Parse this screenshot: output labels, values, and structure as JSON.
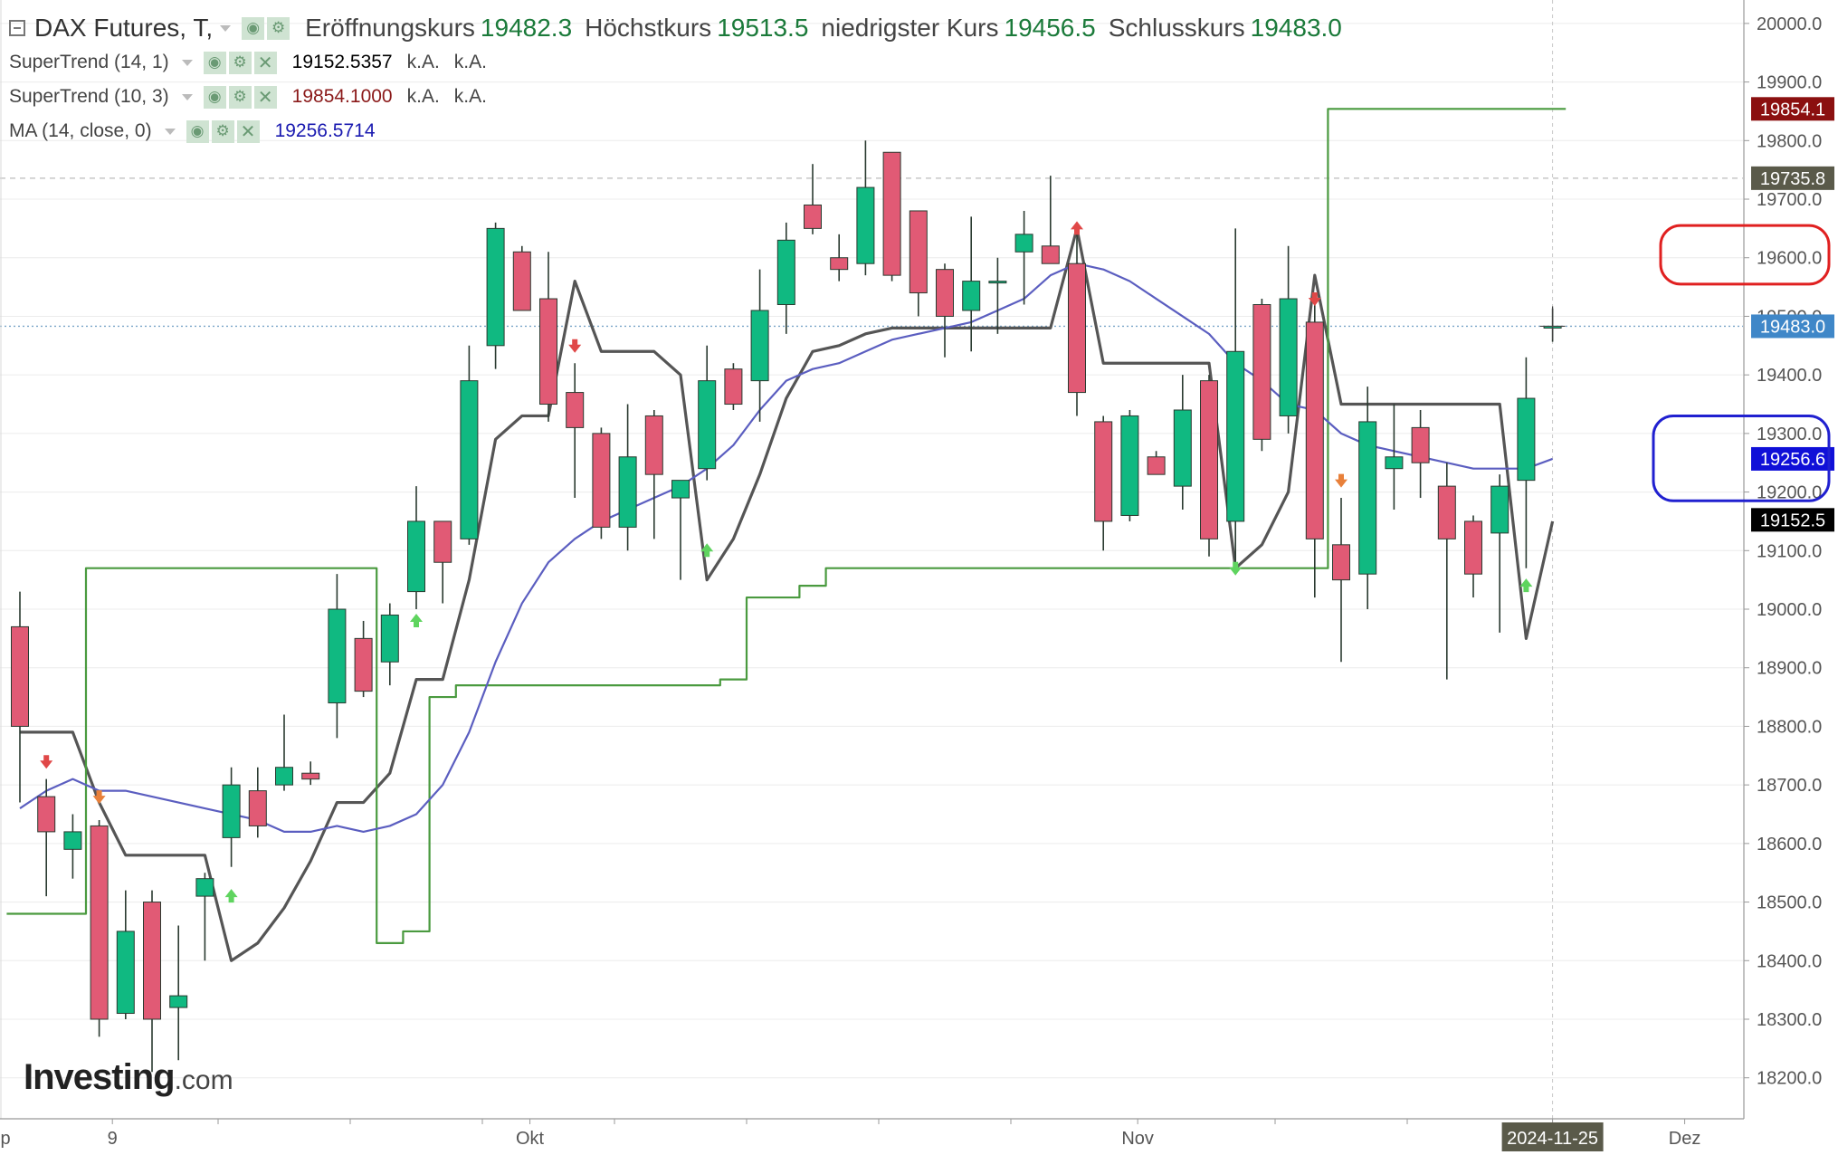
{
  "header": {
    "symbol": "DAX Futures, T,",
    "open_label": "Eröffnungskurs",
    "open_value": "19482.3",
    "high_label": "Höchstkurs",
    "high_value": "19513.5",
    "low_label": "niedrigster Kurs",
    "low_value": "19456.5",
    "close_label": "Schlusskurs",
    "close_value": "19483.0"
  },
  "indicators": [
    {
      "label": "SuperTrend (14, 1)",
      "value": "19152.5357",
      "na1": "k.A.",
      "na2": "k.A.",
      "color": "#000000"
    },
    {
      "label": "SuperTrend (10, 3)",
      "value": "19854.1000",
      "na1": "k.A.",
      "na2": "k.A.",
      "color": "#8b1a1a"
    },
    {
      "label": "MA (14, close, 0)",
      "value": "19256.5714",
      "na1": "",
      "na2": "",
      "color": "#1a1ab0"
    }
  ],
  "logo": {
    "brand": "Investing",
    "suffix": ".com"
  },
  "colors": {
    "up": "#10b981",
    "down": "#e15a75",
    "grid": "#ececec"
  },
  "chart_data": {
    "type": "candlestick",
    "title": "DAX Futures, T,",
    "y_axis": {
      "min": 18130,
      "max": 20040,
      "ticks": [
        18200,
        18300,
        18400,
        18500,
        18600,
        18700,
        18800,
        18900,
        19000,
        19100,
        19200,
        19300,
        19400,
        19500,
        19600,
        19700,
        19800,
        19900,
        20000
      ],
      "tick_labels": [
        "18200.0",
        "18300.0",
        "18400.0",
        "18500.0",
        "18600.0",
        "18700.0",
        "18800.0",
        "18900.0",
        "19000.0",
        "19100.0",
        "19200.0",
        "19300.0",
        "19400.0",
        "19500.0",
        "19600.0",
        "19700.0",
        "19800.0",
        "19900.0",
        "20000.0"
      ]
    },
    "x_axis": {
      "labels": [
        {
          "text": "p",
          "index": -1.8
        },
        {
          "text": "9",
          "index": 3.5
        },
        {
          "text": "Okt",
          "index": 19.3
        },
        {
          "text": "Nov",
          "index": 42.3
        },
        {
          "text": "2024-11-25",
          "index": 58,
          "highlight": true
        },
        {
          "text": "Dez",
          "index": 63
        }
      ],
      "minor_ticks": [
        7.5,
        12.5,
        17.5,
        22.5,
        27.5,
        32.5,
        37.5,
        47.5,
        52.5
      ]
    },
    "candles": [
      {
        "o": 18970,
        "h": 19030,
        "l": 18670,
        "c": 18800
      },
      {
        "o": 18680,
        "h": 18710,
        "l": 18510,
        "c": 18620
      },
      {
        "o": 18590,
        "h": 18650,
        "l": 18540,
        "c": 18620
      },
      {
        "o": 18630,
        "h": 18640,
        "l": 18270,
        "c": 18300
      },
      {
        "o": 18310,
        "h": 18520,
        "l": 18300,
        "c": 18450
      },
      {
        "o": 18500,
        "h": 18520,
        "l": 18210,
        "c": 18300
      },
      {
        "o": 18320,
        "h": 18460,
        "l": 18230,
        "c": 18340
      },
      {
        "o": 18510,
        "h": 18550,
        "l": 18400,
        "c": 18540
      },
      {
        "o": 18610,
        "h": 18730,
        "l": 18560,
        "c": 18700
      },
      {
        "o": 18690,
        "h": 18730,
        "l": 18610,
        "c": 18630
      },
      {
        "o": 18700,
        "h": 18820,
        "l": 18690,
        "c": 18730
      },
      {
        "o": 18720,
        "h": 18740,
        "l": 18700,
        "c": 18710
      },
      {
        "o": 18840,
        "h": 19060,
        "l": 18780,
        "c": 19000
      },
      {
        "o": 18950,
        "h": 18980,
        "l": 18850,
        "c": 18860
      },
      {
        "o": 18910,
        "h": 19010,
        "l": 18870,
        "c": 18990
      },
      {
        "o": 19030,
        "h": 19210,
        "l": 19000,
        "c": 19150
      },
      {
        "o": 19150,
        "h": 19150,
        "l": 19010,
        "c": 19080
      },
      {
        "o": 19120,
        "h": 19450,
        "l": 19110,
        "c": 19390
      },
      {
        "o": 19450,
        "h": 19660,
        "l": 19410,
        "c": 19650
      },
      {
        "o": 19610,
        "h": 19620,
        "l": 19510,
        "c": 19510
      },
      {
        "o": 19530,
        "h": 19610,
        "l": 19320,
        "c": 19350
      },
      {
        "o": 19370,
        "h": 19420,
        "l": 19190,
        "c": 19310
      },
      {
        "o": 19300,
        "h": 19310,
        "l": 19120,
        "c": 19140
      },
      {
        "o": 19140,
        "h": 19350,
        "l": 19100,
        "c": 19260
      },
      {
        "o": 19330,
        "h": 19340,
        "l": 19120,
        "c": 19230
      },
      {
        "o": 19190,
        "h": 19220,
        "l": 19050,
        "c": 19220
      },
      {
        "o": 19240,
        "h": 19450,
        "l": 19220,
        "c": 19390
      },
      {
        "o": 19410,
        "h": 19420,
        "l": 19340,
        "c": 19350
      },
      {
        "o": 19390,
        "h": 19580,
        "l": 19320,
        "c": 19510
      },
      {
        "o": 19520,
        "h": 19660,
        "l": 19470,
        "c": 19630
      },
      {
        "o": 19690,
        "h": 19760,
        "l": 19640,
        "c": 19650
      },
      {
        "o": 19600,
        "h": 19640,
        "l": 19560,
        "c": 19580
      },
      {
        "o": 19590,
        "h": 19800,
        "l": 19570,
        "c": 19720
      },
      {
        "o": 19780,
        "h": 19780,
        "l": 19560,
        "c": 19570
      },
      {
        "o": 19680,
        "h": 19680,
        "l": 19500,
        "c": 19540
      },
      {
        "o": 19580,
        "h": 19590,
        "l": 19430,
        "c": 19500
      },
      {
        "o": 19510,
        "h": 19670,
        "l": 19440,
        "c": 19560
      },
      {
        "o": 19560,
        "h": 19600,
        "l": 19470,
        "c": 19560
      },
      {
        "o": 19610,
        "h": 19680,
        "l": 19520,
        "c": 19640
      },
      {
        "o": 19620,
        "h": 19740,
        "l": 19590,
        "c": 19590
      },
      {
        "o": 19590,
        "h": 19660,
        "l": 19330,
        "c": 19370
      },
      {
        "o": 19320,
        "h": 19330,
        "l": 19100,
        "c": 19150
      },
      {
        "o": 19160,
        "h": 19340,
        "l": 19150,
        "c": 19330
      },
      {
        "o": 19260,
        "h": 19270,
        "l": 19230,
        "c": 19230
      },
      {
        "o": 19210,
        "h": 19400,
        "l": 19170,
        "c": 19340
      },
      {
        "o": 19390,
        "h": 19400,
        "l": 19090,
        "c": 19120
      },
      {
        "o": 19150,
        "h": 19650,
        "l": 19080,
        "c": 19440
      },
      {
        "o": 19520,
        "h": 19530,
        "l": 19270,
        "c": 19290
      },
      {
        "o": 19330,
        "h": 19620,
        "l": 19300,
        "c": 19530
      },
      {
        "o": 19490,
        "h": 19530,
        "l": 19020,
        "c": 19120
      },
      {
        "o": 19110,
        "h": 19190,
        "l": 18910,
        "c": 19050
      },
      {
        "o": 19060,
        "h": 19380,
        "l": 19000,
        "c": 19320
      },
      {
        "o": 19240,
        "h": 19350,
        "l": 19170,
        "c": 19260
      },
      {
        "o": 19310,
        "h": 19340,
        "l": 19190,
        "c": 19250
      },
      {
        "o": 19210,
        "h": 19250,
        "l": 18880,
        "c": 19120
      },
      {
        "o": 19150,
        "h": 19160,
        "l": 19020,
        "c": 19060
      },
      {
        "o": 19130,
        "h": 19230,
        "l": 18960,
        "c": 19210
      },
      {
        "o": 19220,
        "h": 19430,
        "l": 19070,
        "c": 19360
      },
      {
        "o": 19482.3,
        "h": 19513.5,
        "l": 19456.5,
        "c": 19483.0
      }
    ],
    "series": [
      {
        "name": "SuperTrend (14, 1)",
        "color": "#555555",
        "values": [
          18790,
          18790,
          18790,
          18670,
          18580,
          18580,
          18580,
          18580,
          18400,
          18430,
          18490,
          18570,
          18670,
          18670,
          18720,
          18880,
          18880,
          19050,
          19290,
          19330,
          19330,
          19560,
          19440,
          19440,
          19440,
          19400,
          19050,
          19120,
          19230,
          19360,
          19440,
          19450,
          19470,
          19480,
          19480,
          19480,
          19480,
          19480,
          19480,
          19480,
          19650,
          19420,
          19420,
          19420,
          19420,
          19420,
          19070,
          19110,
          19200,
          19570,
          19350,
          19350,
          19350,
          19350,
          19350,
          19350,
          19350,
          18950,
          19150
        ]
      },
      {
        "name": "SuperTrend (10, 3)",
        "color": "#4a9a3f",
        "values": [
          18480,
          18480,
          18480,
          19070,
          19070,
          19070,
          19070,
          19070,
          19070,
          19070,
          19070,
          19070,
          19070,
          19070,
          18430,
          18450,
          18850,
          18870,
          18870,
          18870,
          18870,
          18870,
          18870,
          18870,
          18870,
          18870,
          18870,
          18880,
          19020,
          19020,
          19040,
          19070,
          19070,
          19070,
          19070,
          19070,
          19070,
          19070,
          19070,
          19070,
          19070,
          19070,
          19070,
          19070,
          19070,
          19070,
          19070,
          19070,
          19070,
          19070,
          19854.1,
          19854.1,
          19854.1,
          19854.1,
          19854.1,
          19854.1,
          19854.1,
          19854.1,
          19854.1
        ]
      },
      {
        "name": "MA (14, close, 0)",
        "color": "#5b5ec0",
        "values": [
          18660,
          18690,
          18710,
          18690,
          18690,
          18680,
          18670,
          18660,
          18650,
          18640,
          18620,
          18620,
          18630,
          18620,
          18630,
          18650,
          18700,
          18790,
          18910,
          19010,
          19080,
          19120,
          19150,
          19170,
          19190,
          19210,
          19240,
          19280,
          19340,
          19390,
          19410,
          19420,
          19440,
          19460,
          19470,
          19480,
          19490,
          19510,
          19530,
          19570,
          19590,
          19580,
          19560,
          19530,
          19500,
          19470,
          19420,
          19390,
          19350,
          19340,
          19300,
          19280,
          19270,
          19260,
          19250,
          19240,
          19240,
          19240,
          19256.6
        ]
      }
    ],
    "markers": [
      {
        "index": 1,
        "price": 18740,
        "dir": "down",
        "color": "#e04848"
      },
      {
        "index": 3,
        "price": 18680,
        "dir": "down",
        "color": "#e8803a"
      },
      {
        "index": 8,
        "price": 18510,
        "dir": "up",
        "color": "#5fd45f"
      },
      {
        "index": 15,
        "price": 18980,
        "dir": "up",
        "color": "#5fd45f"
      },
      {
        "index": 21,
        "price": 19450,
        "dir": "down",
        "color": "#e04848"
      },
      {
        "index": 26,
        "price": 19100,
        "dir": "up",
        "color": "#5fd45f"
      },
      {
        "index": 40,
        "price": 19650,
        "dir": "up",
        "color": "#e04848"
      },
      {
        "index": 46,
        "price": 19070,
        "dir": "down",
        "color": "#5fd45f"
      },
      {
        "index": 49,
        "price": 19530,
        "dir": "down",
        "color": "#e04848"
      },
      {
        "index": 50,
        "price": 19220,
        "dir": "down",
        "color": "#e8803a"
      },
      {
        "index": 57,
        "price": 19040,
        "dir": "up",
        "color": "#5fd45f"
      }
    ],
    "reference_lines": [
      {
        "price": 19735.8,
        "style": "dashed",
        "color": "#bbbbbb"
      },
      {
        "price": 19483.0,
        "style": "dotted",
        "color": "#7aa6c8"
      }
    ],
    "price_labels": [
      {
        "price": 19854.1,
        "text": "19854.1",
        "bg": "#8b1010",
        "fg": "#ffffff"
      },
      {
        "price": 19735.8,
        "text": "19735.8",
        "bg": "#5a5a4a",
        "fg": "#ffffff"
      },
      {
        "price": 19483.0,
        "text": "19483.0",
        "bg": "#3f87c8",
        "fg": "#ffffff"
      },
      {
        "price": 19256.6,
        "text": "19256.6",
        "bg": "#1010d8",
        "fg": "#ffffff"
      },
      {
        "price": 19152.5,
        "text": "19152.5",
        "bg": "#000000",
        "fg": "#ffffff"
      }
    ],
    "annotations": [
      {
        "type": "rounded-rect",
        "color": "#e02020",
        "price_top": 19655,
        "price_bottom": 19555
      },
      {
        "type": "rounded-rect",
        "color": "#2020d0",
        "price_top": 19330,
        "price_bottom": 19185
      }
    ]
  }
}
